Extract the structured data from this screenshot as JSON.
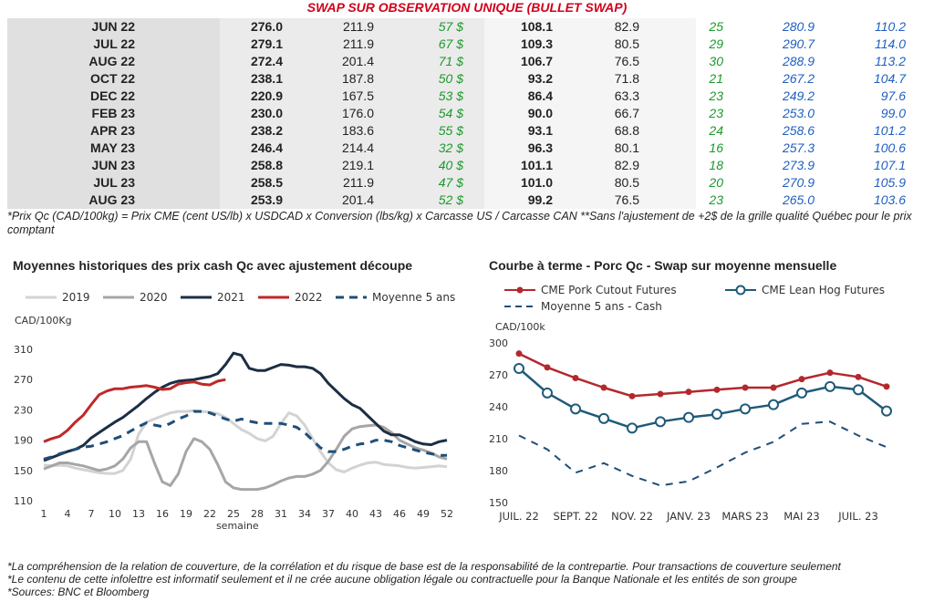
{
  "table": {
    "title": "SWAP SUR OBSERVATION UNIQUE (BULLET SWAP)",
    "rows": [
      [
        "JUN 22",
        "276.0",
        "211.9",
        "57 $",
        "108.1",
        "82.9",
        "25",
        "280.9",
        "110.2"
      ],
      [
        "JUL 22",
        "279.1",
        "211.9",
        "67 $",
        "109.3",
        "80.5",
        "29",
        "290.7",
        "114.0"
      ],
      [
        "AUG 22",
        "272.4",
        "201.4",
        "71 $",
        "106.7",
        "76.5",
        "30",
        "288.9",
        "113.2"
      ],
      [
        "OCT 22",
        "238.1",
        "187.8",
        "50 $",
        "93.2",
        "71.8",
        "21",
        "267.2",
        "104.7"
      ],
      [
        "DEC 22",
        "220.9",
        "167.5",
        "53 $",
        "86.4",
        "63.3",
        "23",
        "249.2",
        "97.6"
      ],
      [
        "FEB 23",
        "230.0",
        "176.0",
        "54 $",
        "90.0",
        "66.7",
        "23",
        "253.0",
        "99.0"
      ],
      [
        "APR 23",
        "238.2",
        "183.6",
        "55 $",
        "93.1",
        "68.8",
        "24",
        "258.6",
        "101.2"
      ],
      [
        "MAY 23",
        "246.4",
        "214.4",
        "32 $",
        "96.3",
        "80.1",
        "16",
        "257.3",
        "100.6"
      ],
      [
        "JUN 23",
        "258.8",
        "219.1",
        "40 $",
        "101.1",
        "82.9",
        "18",
        "273.9",
        "107.1"
      ],
      [
        "JUL 23",
        "258.5",
        "211.9",
        "47 $",
        "101.0",
        "80.5",
        "20",
        "270.9",
        "105.9"
      ],
      [
        "AUG 23",
        "253.9",
        "201.4",
        "52 $",
        "99.2",
        "76.5",
        "23",
        "265.0",
        "103.6"
      ]
    ],
    "note": "*Prix Qc (CAD/100kg) = Prix CME (cent US/lb) x USDCAD x Conversion (lbs/kg) x Carcasse US / Carcasse CAN **Sans l'ajustement de +2$ de la grille qualité Québec pour le prix comptant"
  },
  "chart_data": [
    {
      "type": "line",
      "title": "Moyennes historiques des prix cash Qc avec ajustement découpe",
      "ylabel": "CAD/100Kg",
      "xlabel": "semaine",
      "ylim": [
        110,
        310
      ],
      "yticks": [
        110,
        150,
        190,
        230,
        270,
        310
      ],
      "xlim": [
        1,
        52
      ],
      "xticks": [
        1,
        4,
        7,
        10,
        13,
        16,
        19,
        22,
        25,
        28,
        31,
        34,
        37,
        40,
        43,
        46,
        49,
        52
      ],
      "grid": false,
      "legend": "top",
      "x": [
        1,
        2,
        3,
        4,
        5,
        6,
        7,
        8,
        9,
        10,
        11,
        12,
        13,
        14,
        15,
        16,
        17,
        18,
        19,
        20,
        21,
        22,
        23,
        24,
        25,
        26,
        27,
        28,
        29,
        30,
        31,
        32,
        33,
        34,
        35,
        36,
        37,
        38,
        39,
        40,
        41,
        42,
        43,
        44,
        45,
        46,
        47,
        48,
        49,
        50,
        51,
        52
      ],
      "series": [
        {
          "name": "2019",
          "color": "#d3d3d3",
          "dash": false,
          "marker": false,
          "values": [
            157,
            156,
            157,
            156,
            153,
            151,
            149,
            147,
            146,
            146,
            150,
            165,
            198,
            214,
            218,
            222,
            226,
            228,
            228,
            229,
            228,
            227,
            225,
            220,
            212,
            204,
            199,
            192,
            189,
            195,
            212,
            226,
            222,
            210,
            192,
            175,
            160,
            151,
            148,
            153,
            157,
            160,
            161,
            158,
            157,
            156,
            154,
            153,
            154,
            155,
            156,
            155
          ]
        },
        {
          "name": "2020",
          "color": "#a6a6a6",
          "dash": false,
          "marker": false,
          "values": [
            152,
            156,
            160,
            160,
            158,
            156,
            153,
            150,
            152,
            156,
            165,
            180,
            188,
            188,
            160,
            135,
            130,
            145,
            175,
            192,
            188,
            178,
            158,
            135,
            127,
            125,
            125,
            125,
            127,
            131,
            136,
            140,
            142,
            142,
            145,
            150,
            162,
            178,
            195,
            205,
            208,
            209,
            210,
            207,
            200,
            190,
            185,
            180,
            177,
            173,
            168,
            165
          ]
        },
        {
          "name": "2021",
          "color": "#1c2e44",
          "dash": false,
          "marker": false,
          "values": [
            163,
            167,
            171,
            175,
            178,
            183,
            193,
            200,
            207,
            214,
            220,
            228,
            236,
            245,
            253,
            260,
            265,
            268,
            269,
            270,
            272,
            274,
            278,
            290,
            305,
            302,
            285,
            282,
            282,
            286,
            290,
            289,
            287,
            287,
            285,
            278,
            265,
            255,
            245,
            237,
            232,
            222,
            212,
            202,
            197,
            197,
            193,
            188,
            185,
            184,
            188,
            190
          ]
        },
        {
          "name": "2022",
          "color": "#c0282a",
          "dash": false,
          "marker": false,
          "values": [
            188,
            192,
            195,
            203,
            214,
            223,
            237,
            250,
            255,
            258,
            258,
            260,
            261,
            262,
            260,
            257,
            258,
            264,
            266,
            267,
            264,
            263,
            268,
            270,
            null,
            null,
            null,
            null,
            null,
            null,
            null,
            null,
            null,
            null,
            null,
            null,
            null,
            null,
            null,
            null,
            null,
            null,
            null,
            null,
            null,
            null,
            null,
            null,
            null,
            null,
            null,
            null
          ]
        },
        {
          "name": "Moyenne 5 ans",
          "color": "#1f4e79",
          "dash": true,
          "marker": false,
          "values": [
            165,
            168,
            172,
            175,
            178,
            181,
            182,
            185,
            188,
            192,
            196,
            202,
            208,
            213,
            210,
            208,
            212,
            218,
            222,
            228,
            228,
            226,
            222,
            218,
            215,
            218,
            215,
            213,
            212,
            212,
            212,
            210,
            207,
            200,
            190,
            180,
            175,
            175,
            178,
            182,
            185,
            186,
            190,
            190,
            188,
            183,
            180,
            177,
            174,
            172,
            170,
            170
          ]
        }
      ]
    },
    {
      "type": "line",
      "title": "Courbe à terme - Porc Qc - Swap sur moyenne mensuelle",
      "ylabel": "CAD/100k",
      "ylim": [
        150,
        300
      ],
      "yticks": [
        150,
        180,
        210,
        240,
        270,
        300
      ],
      "categories": [
        "JUIL. 22",
        "AOÛT 22",
        "SEPT. 22",
        "OCT. 22",
        "NOV. 22",
        "DÉC. 22",
        "JANV. 23",
        "FÉVR. 23",
        "MARS 23",
        "AVR. 23",
        "MAI 23",
        "JUIN 23",
        "JUIL. 23",
        "AOÛT 23"
      ],
      "xtick_labels": [
        "JUIL. 22",
        "SEPT. 22",
        "NOV. 22",
        "JANV. 23",
        "MARS 23",
        "MAI 23",
        "JUIL. 23"
      ],
      "xtick_indices": [
        0,
        2,
        4,
        6,
        8,
        10,
        12
      ],
      "grid": false,
      "legend": "top",
      "series": [
        {
          "name": "CME Pork Cutout Futures",
          "color": "#b3282d",
          "dash": false,
          "marker": "filled",
          "values": [
            290,
            277,
            267,
            258,
            250,
            252,
            254,
            256,
            258,
            258,
            266,
            272,
            268,
            259
          ]
        },
        {
          "name": "CME Lean Hog Futures",
          "color": "#1f5a7a",
          "dash": false,
          "marker": "open",
          "values": [
            276,
            253,
            238,
            229,
            220,
            226,
            230,
            233,
            238,
            242,
            253,
            259,
            256,
            236
          ]
        },
        {
          "name": "Moyenne 5 ans - Cash",
          "color": "#1f4e79",
          "dash": true,
          "marker": false,
          "values": [
            213,
            200,
            178,
            187,
            175,
            166,
            170,
            183,
            197,
            207,
            224,
            226,
            213,
            202
          ]
        }
      ]
    }
  ],
  "footer": [
    "*La compréhension de la relation de couverture, de la corrélation et du risque de base est de la responsabilité de la contrepartie. Pour transactions de couverture seulement",
    "*Le contenu de cette infolettre est informatif seulement et il ne crée aucune obligation légale ou contractuelle pour la Banque Nationale et les entités de son groupe",
    "*Sources: BNC et Bloomberg"
  ]
}
